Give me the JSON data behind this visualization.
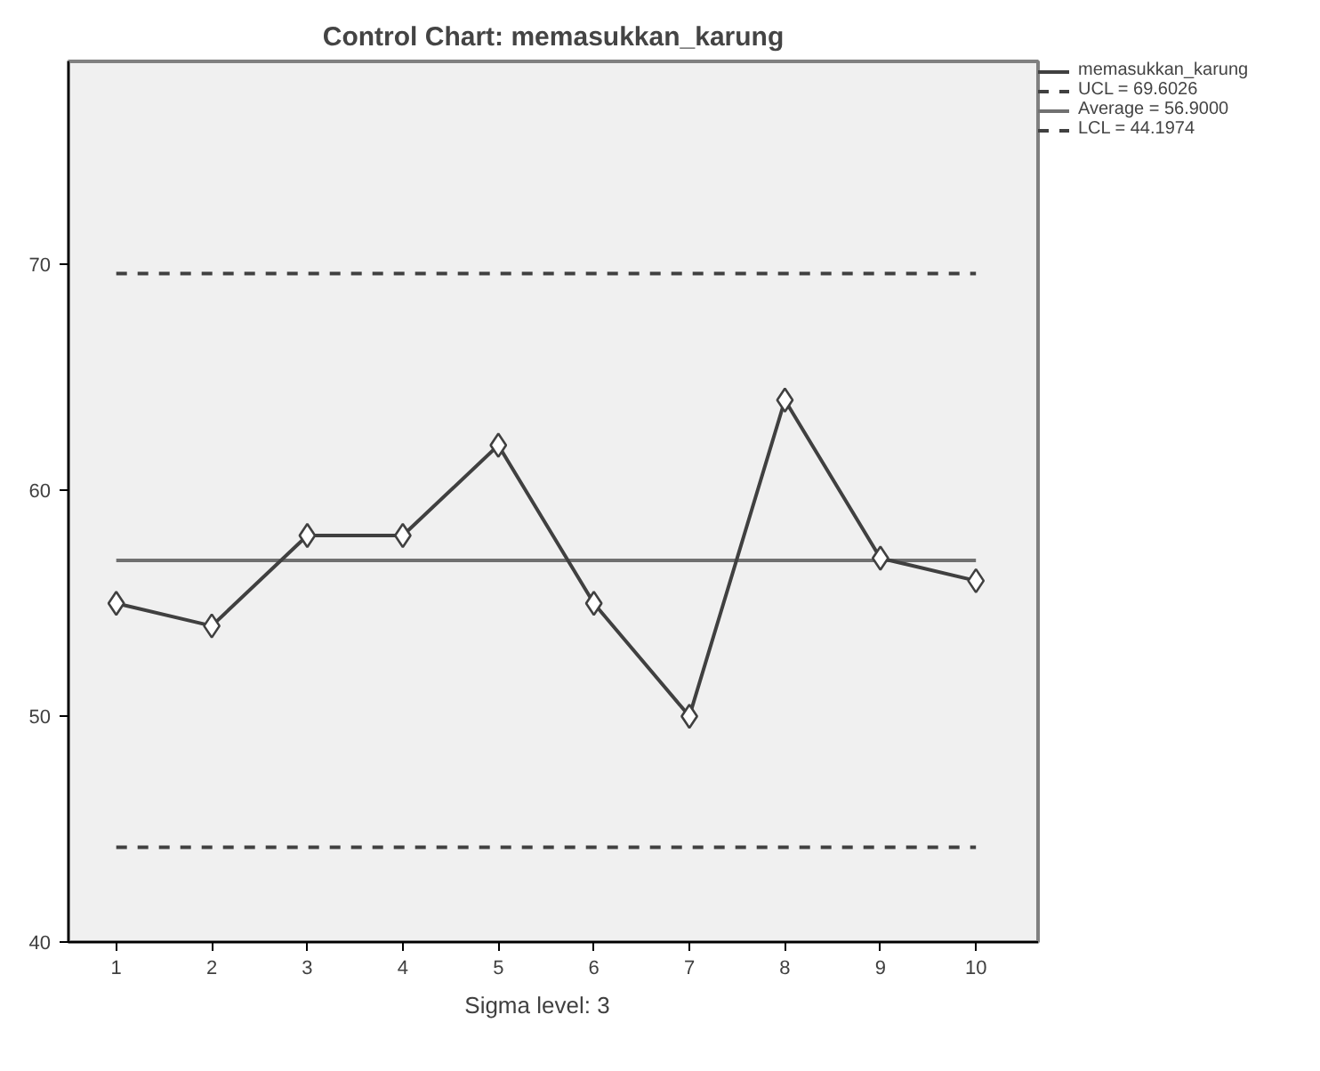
{
  "chart_data": {
    "type": "line",
    "title": "Control Chart: memasukkan_karung",
    "x": [
      1,
      2,
      3,
      4,
      5,
      6,
      7,
      8,
      9,
      10
    ],
    "series": [
      {
        "name": "memasukkan_karung",
        "color": "#404040",
        "values": [
          55,
          54,
          58,
          58,
          62,
          55,
          50,
          64,
          57,
          56
        ]
      }
    ],
    "xlim": [
      0.5,
      10.65
    ],
    "xticks": [
      1,
      2,
      3,
      4,
      5,
      6,
      7,
      8,
      9,
      10
    ],
    "ylim": [
      40,
      79
    ],
    "yticks": [
      40,
      50,
      60,
      70
    ],
    "ref_lines": [
      {
        "axis": "y",
        "value": 69.6026,
        "label": "UCL = 69.6026",
        "color": "#404040",
        "line_style": "dashed"
      },
      {
        "axis": "y",
        "value": 56.9,
        "label": "Average = 56.9000",
        "color": "#707070",
        "line_style": "solid"
      },
      {
        "axis": "y",
        "value": 44.1974,
        "label": "LCL = 44.1974",
        "color": "#404040",
        "line_style": "dashed"
      }
    ],
    "annotations": [
      "Sigma level:      3"
    ],
    "marker": "diamond",
    "line_style": "solid",
    "grid": false,
    "legend": "top right"
  }
}
